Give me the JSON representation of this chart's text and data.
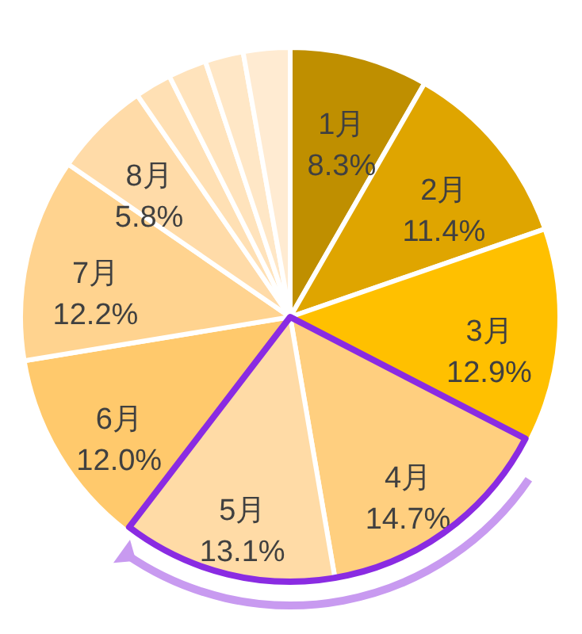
{
  "chart_data": {
    "type": "pie",
    "categories": [
      "1月",
      "2月",
      "3月",
      "4月",
      "5月",
      "6月",
      "7月",
      "8月",
      null,
      null,
      null,
      null
    ],
    "values": [
      8.3,
      11.4,
      12.9,
      14.7,
      13.1,
      12.0,
      12.2,
      5.8,
      2.2,
      2.3,
      2.3,
      2.8
    ],
    "value_labels": [
      "8.3%",
      "11.4%",
      "12.9%",
      "14.7%",
      "13.1%",
      "12.0%",
      "12.2%",
      "5.8%",
      null,
      null,
      null,
      null
    ],
    "colors": [
      "#bf8f00",
      "#dfa500",
      "#ffc000",
      "#ffcf7f",
      "#ffdba6",
      "#ffc96c",
      "#ffd38f",
      "#ffdba8",
      "#ffe0b4",
      "#ffe3bc",
      "#ffe7c6",
      "#ffebd2"
    ]
  }
}
